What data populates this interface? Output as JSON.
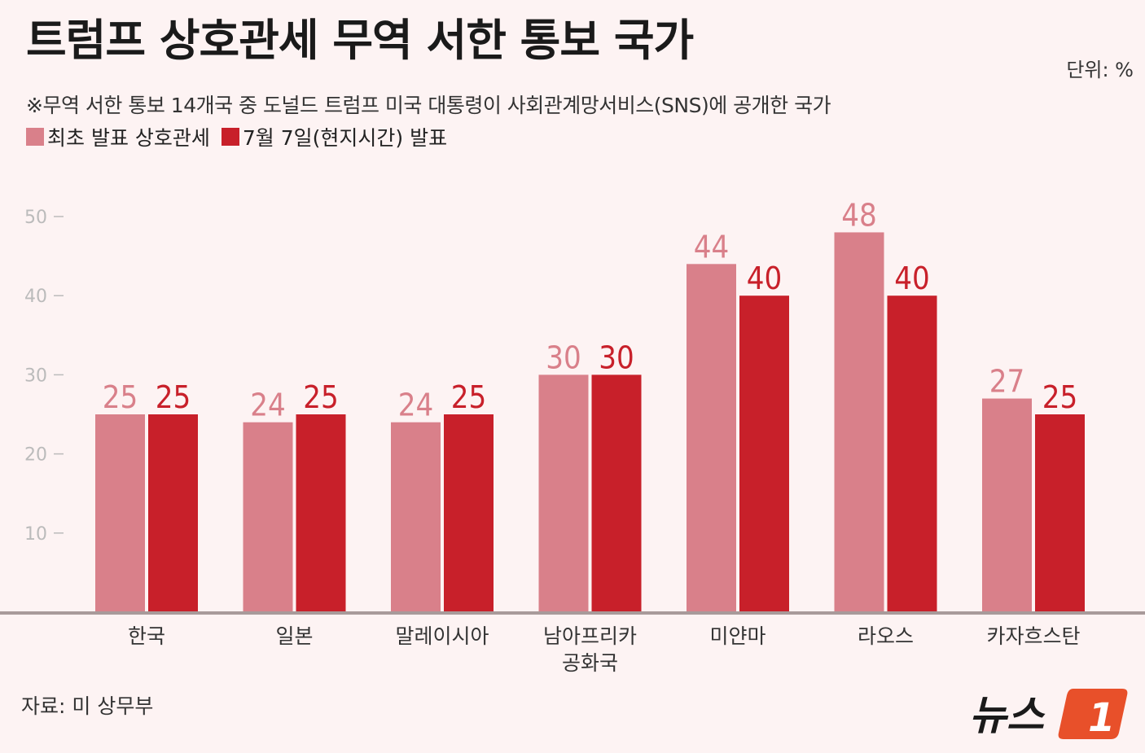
{
  "title": "트럼프 상호관세 무역 서한 통보 국가",
  "unit": "단위: %",
  "subtitle": "※무역 서한 통보 14개국 중 도널드 트럼프 미국 대통령이 사회관계망서비스(SNS)에 공개한 국가",
  "source": "자료: 미 상무부",
  "logo": {
    "text": "뉴스",
    "mark": "1"
  },
  "colors": {
    "series1": "#d9808a",
    "series2": "#c8202a",
    "background": "#fdf3f3",
    "logo_orange": "#e8502a"
  },
  "chart_data": {
    "type": "bar",
    "ylim": [
      0,
      50
    ],
    "yticks": [
      10,
      20,
      30,
      40,
      50
    ],
    "categories": [
      [
        "한국"
      ],
      [
        "일본"
      ],
      [
        "말레이시아"
      ],
      [
        "남아프리카",
        "공화국"
      ],
      [
        "미얀마"
      ],
      [
        "라오스"
      ],
      [
        "카자흐스탄"
      ]
    ],
    "series": [
      {
        "name": "최초 발표 상호관세",
        "values": [
          25,
          24,
          24,
          30,
          44,
          48,
          27
        ]
      },
      {
        "name": "7월 7일(현지시간) 발표",
        "values": [
          25,
          25,
          25,
          30,
          40,
          40,
          25
        ]
      }
    ],
    "grid": false,
    "legend": "top-left"
  }
}
